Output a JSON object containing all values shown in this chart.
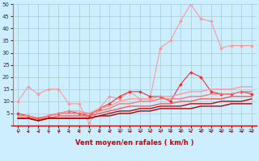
{
  "x": [
    0,
    1,
    2,
    3,
    4,
    5,
    6,
    7,
    8,
    9,
    10,
    11,
    12,
    13,
    14,
    15,
    16,
    17,
    18,
    19,
    20,
    21,
    22,
    23
  ],
  "series": [
    {
      "y": [
        10,
        16,
        13,
        15,
        15,
        9,
        9,
        1,
        7,
        12,
        11,
        14,
        11,
        11,
        32,
        35,
        43,
        50,
        44,
        43,
        32,
        33,
        33,
        33
      ],
      "color": "#ff9999",
      "marker": "D",
      "lw": 0.8,
      "ms": 2.0
    },
    {
      "y": [
        5,
        4,
        3,
        4,
        5,
        6,
        5,
        4,
        7,
        9,
        12,
        14,
        14,
        12,
        12,
        10,
        17,
        22,
        20,
        14,
        13,
        13,
        14,
        13
      ],
      "color": "#ee3333",
      "marker": "D",
      "lw": 0.8,
      "ms": 2.0
    },
    {
      "y": [
        4,
        4,
        3,
        4,
        5,
        6,
        6,
        5,
        7,
        8,
        10,
        11,
        11,
        11,
        12,
        12,
        13,
        14,
        14,
        15,
        15,
        15,
        16,
        16
      ],
      "color": "#ff9999",
      "marker": null,
      "lw": 1.0,
      "ms": 0
    },
    {
      "y": [
        4,
        4,
        3,
        4,
        5,
        5,
        5,
        5,
        6,
        7,
        9,
        9,
        10,
        10,
        11,
        11,
        11,
        12,
        12,
        13,
        13,
        13,
        14,
        14
      ],
      "color": "#ff7777",
      "marker": null,
      "lw": 1.0,
      "ms": 0
    },
    {
      "y": [
        3,
        3,
        3,
        3,
        4,
        4,
        4,
        4,
        5,
        6,
        7,
        8,
        8,
        8,
        9,
        9,
        10,
        10,
        11,
        11,
        11,
        12,
        12,
        12
      ],
      "color": "#ff5555",
      "marker": null,
      "lw": 1.0,
      "ms": 0
    },
    {
      "y": [
        3,
        3,
        2,
        3,
        3,
        3,
        3,
        3,
        4,
        5,
        6,
        6,
        7,
        7,
        8,
        8,
        8,
        9,
        9,
        9,
        10,
        10,
        10,
        11
      ],
      "color": "#cc0000",
      "marker": null,
      "lw": 1.0,
      "ms": 0
    },
    {
      "y": [
        3,
        3,
        2,
        3,
        3,
        3,
        3,
        3,
        4,
        4,
        5,
        5,
        6,
        6,
        7,
        7,
        7,
        7,
        8,
        8,
        8,
        9,
        9,
        9
      ],
      "color": "#aa0000",
      "marker": null,
      "lw": 1.0,
      "ms": 0
    }
  ],
  "wind_angles": [
    225,
    270,
    270,
    225,
    225,
    270,
    270,
    225,
    270,
    270,
    270,
    270,
    270,
    270,
    270,
    270,
    270,
    270,
    270,
    270,
    270,
    270,
    270,
    270
  ],
  "bg_color": "#cceeff",
  "grid_color": "#aacccc",
  "xlabel": "Vent moyen/en rafales ( km/h )",
  "ylim": [
    0,
    50
  ],
  "xlim": [
    -0.5,
    23.5
  ],
  "yticks": [
    0,
    5,
    10,
    15,
    20,
    25,
    30,
    35,
    40,
    45,
    50
  ],
  "xticks": [
    0,
    1,
    2,
    3,
    4,
    5,
    6,
    7,
    8,
    9,
    10,
    11,
    12,
    13,
    14,
    15,
    16,
    17,
    18,
    19,
    20,
    21,
    22,
    23
  ]
}
